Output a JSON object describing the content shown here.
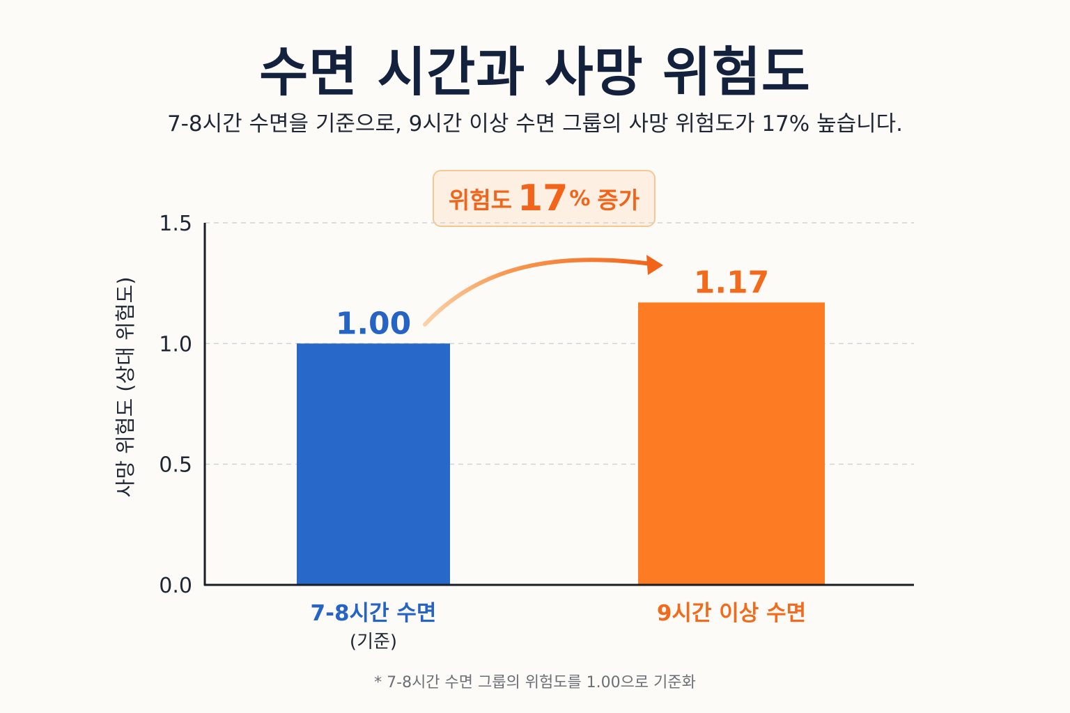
{
  "header": {
    "title": "수면 시간과 사망 위험도",
    "subtitle": "7-8시간 수면을 기준으로, 9시간 이상 수면 그룹의 사망 위험도가 17% 높습니다."
  },
  "badge": {
    "prefix": "위험도",
    "number": "17",
    "percent": "%",
    "suffix": "증가"
  },
  "footnote": "* 7-8시간 수면 그룹의 위험도를 1.00으로 기준화",
  "chart_data": {
    "type": "bar",
    "title": "수면 시간과 사망 위험도",
    "ylabel": "사망 위험도 (상대 위험도)",
    "xlabel": "",
    "ylim": [
      0,
      1.5
    ],
    "yticks": [
      0.0,
      0.5,
      1.0,
      1.5
    ],
    "ytick_labels": [
      "0.0",
      "0.5",
      "1.0",
      "1.5"
    ],
    "grid": true,
    "categories": [
      "7-8시간 수면",
      "9시간 이상 수면"
    ],
    "category_sublabels": [
      "(기준)",
      ""
    ],
    "values": [
      1.0,
      1.17
    ],
    "value_labels": [
      "1.00",
      "1.17"
    ],
    "colors": [
      "#2868c9",
      "#fd7b22"
    ],
    "label_colors": [
      "#2563c4",
      "#f26a1b"
    ],
    "annotation": "위험도 17% 증가"
  }
}
